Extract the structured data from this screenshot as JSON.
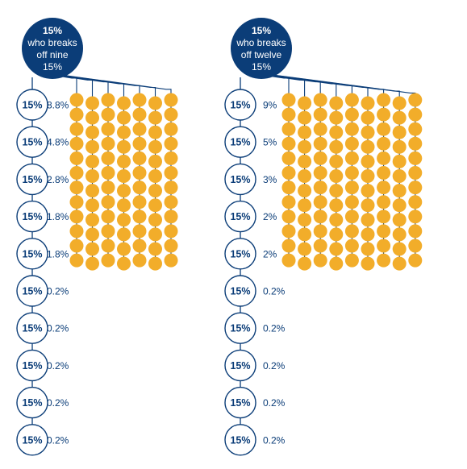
{
  "colors": {
    "navy": "#0b3d78",
    "dot": "#f2ad2a",
    "white": "#ffffff"
  },
  "panels": [
    {
      "header": {
        "line1": "15%",
        "line2": "who breaks",
        "line3": "off nine",
        "line4": "15%"
      },
      "columns": 7,
      "rows": [
        {
          "node": "15%",
          "pct": "8.8%"
        },
        {
          "node": "15%",
          "pct": "4.8%"
        },
        {
          "node": "15%",
          "pct": "2.8%"
        },
        {
          "node": "15%",
          "pct": "1.8%"
        },
        {
          "node": "15%",
          "pct": "1.8%"
        },
        {
          "node": "15%",
          "pct": "0.2%"
        },
        {
          "node": "15%",
          "pct": "0.2%"
        },
        {
          "node": "15%",
          "pct": "0.2%"
        },
        {
          "node": "15%",
          "pct": "0.2%"
        },
        {
          "node": "15%",
          "pct": "0.2%"
        }
      ]
    },
    {
      "header": {
        "line1": "15%",
        "line2": "who breaks",
        "line3": "off twelve",
        "line4": "15%"
      },
      "columns": 9,
      "rows": [
        {
          "node": "15%",
          "pct": "9%"
        },
        {
          "node": "15%",
          "pct": "5%"
        },
        {
          "node": "15%",
          "pct": "3%"
        },
        {
          "node": "15%",
          "pct": "2%"
        },
        {
          "node": "15%",
          "pct": "2%"
        },
        {
          "node": "15%",
          "pct": "0.2%"
        },
        {
          "node": "15%",
          "pct": "0.2%"
        },
        {
          "node": "15%",
          "pct": "0.2%"
        },
        {
          "node": "15%",
          "pct": "0.2%"
        },
        {
          "node": "15%",
          "pct": "0.2%"
        }
      ]
    }
  ]
}
